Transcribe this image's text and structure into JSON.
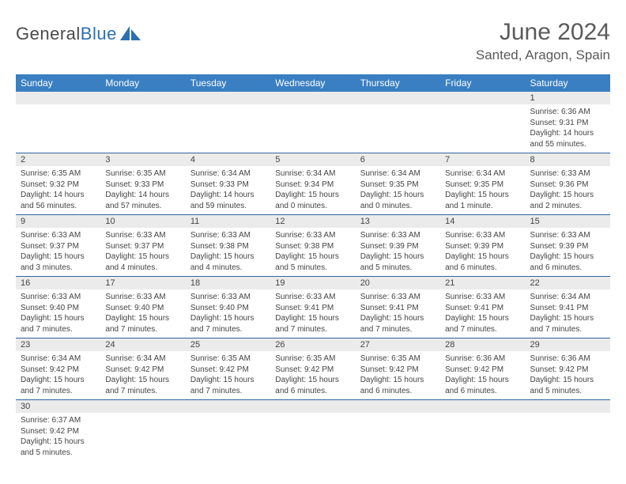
{
  "logo": {
    "word1": "General",
    "word2": "Blue"
  },
  "title": "June 2024",
  "location": "Santed, Aragon, Spain",
  "colors": {
    "header_bg": "#3a7fc1",
    "header_text": "#ffffff",
    "daynum_bg": "#ebebeb",
    "row_divider": "#3064a0",
    "body_text": "#444444",
    "title_text": "#5a5a5a",
    "logo_gray": "#4a4a4a",
    "logo_blue": "#2c6fb0"
  },
  "daysOfWeek": [
    "Sunday",
    "Monday",
    "Tuesday",
    "Wednesday",
    "Thursday",
    "Friday",
    "Saturday"
  ],
  "weeks": [
    [
      null,
      null,
      null,
      null,
      null,
      null,
      {
        "n": "1",
        "sr": "6:36 AM",
        "ss": "9:31 PM",
        "dl": "14 hours and 55 minutes."
      }
    ],
    [
      {
        "n": "2",
        "sr": "6:35 AM",
        "ss": "9:32 PM",
        "dl": "14 hours and 56 minutes."
      },
      {
        "n": "3",
        "sr": "6:35 AM",
        "ss": "9:33 PM",
        "dl": "14 hours and 57 minutes."
      },
      {
        "n": "4",
        "sr": "6:34 AM",
        "ss": "9:33 PM",
        "dl": "14 hours and 59 minutes."
      },
      {
        "n": "5",
        "sr": "6:34 AM",
        "ss": "9:34 PM",
        "dl": "15 hours and 0 minutes."
      },
      {
        "n": "6",
        "sr": "6:34 AM",
        "ss": "9:35 PM",
        "dl": "15 hours and 0 minutes."
      },
      {
        "n": "7",
        "sr": "6:34 AM",
        "ss": "9:35 PM",
        "dl": "15 hours and 1 minute."
      },
      {
        "n": "8",
        "sr": "6:33 AM",
        "ss": "9:36 PM",
        "dl": "15 hours and 2 minutes."
      }
    ],
    [
      {
        "n": "9",
        "sr": "6:33 AM",
        "ss": "9:37 PM",
        "dl": "15 hours and 3 minutes."
      },
      {
        "n": "10",
        "sr": "6:33 AM",
        "ss": "9:37 PM",
        "dl": "15 hours and 4 minutes."
      },
      {
        "n": "11",
        "sr": "6:33 AM",
        "ss": "9:38 PM",
        "dl": "15 hours and 4 minutes."
      },
      {
        "n": "12",
        "sr": "6:33 AM",
        "ss": "9:38 PM",
        "dl": "15 hours and 5 minutes."
      },
      {
        "n": "13",
        "sr": "6:33 AM",
        "ss": "9:39 PM",
        "dl": "15 hours and 5 minutes."
      },
      {
        "n": "14",
        "sr": "6:33 AM",
        "ss": "9:39 PM",
        "dl": "15 hours and 6 minutes."
      },
      {
        "n": "15",
        "sr": "6:33 AM",
        "ss": "9:39 PM",
        "dl": "15 hours and 6 minutes."
      }
    ],
    [
      {
        "n": "16",
        "sr": "6:33 AM",
        "ss": "9:40 PM",
        "dl": "15 hours and 7 minutes."
      },
      {
        "n": "17",
        "sr": "6:33 AM",
        "ss": "9:40 PM",
        "dl": "15 hours and 7 minutes."
      },
      {
        "n": "18",
        "sr": "6:33 AM",
        "ss": "9:40 PM",
        "dl": "15 hours and 7 minutes."
      },
      {
        "n": "19",
        "sr": "6:33 AM",
        "ss": "9:41 PM",
        "dl": "15 hours and 7 minutes."
      },
      {
        "n": "20",
        "sr": "6:33 AM",
        "ss": "9:41 PM",
        "dl": "15 hours and 7 minutes."
      },
      {
        "n": "21",
        "sr": "6:33 AM",
        "ss": "9:41 PM",
        "dl": "15 hours and 7 minutes."
      },
      {
        "n": "22",
        "sr": "6:34 AM",
        "ss": "9:41 PM",
        "dl": "15 hours and 7 minutes."
      }
    ],
    [
      {
        "n": "23",
        "sr": "6:34 AM",
        "ss": "9:42 PM",
        "dl": "15 hours and 7 minutes."
      },
      {
        "n": "24",
        "sr": "6:34 AM",
        "ss": "9:42 PM",
        "dl": "15 hours and 7 minutes."
      },
      {
        "n": "25",
        "sr": "6:35 AM",
        "ss": "9:42 PM",
        "dl": "15 hours and 7 minutes."
      },
      {
        "n": "26",
        "sr": "6:35 AM",
        "ss": "9:42 PM",
        "dl": "15 hours and 6 minutes."
      },
      {
        "n": "27",
        "sr": "6:35 AM",
        "ss": "9:42 PM",
        "dl": "15 hours and 6 minutes."
      },
      {
        "n": "28",
        "sr": "6:36 AM",
        "ss": "9:42 PM",
        "dl": "15 hours and 6 minutes."
      },
      {
        "n": "29",
        "sr": "6:36 AM",
        "ss": "9:42 PM",
        "dl": "15 hours and 5 minutes."
      }
    ],
    [
      {
        "n": "30",
        "sr": "6:37 AM",
        "ss": "9:42 PM",
        "dl": "15 hours and 5 minutes."
      },
      null,
      null,
      null,
      null,
      null,
      null
    ]
  ],
  "labels": {
    "sunrise": "Sunrise:",
    "sunset": "Sunset:",
    "daylight": "Daylight:"
  }
}
